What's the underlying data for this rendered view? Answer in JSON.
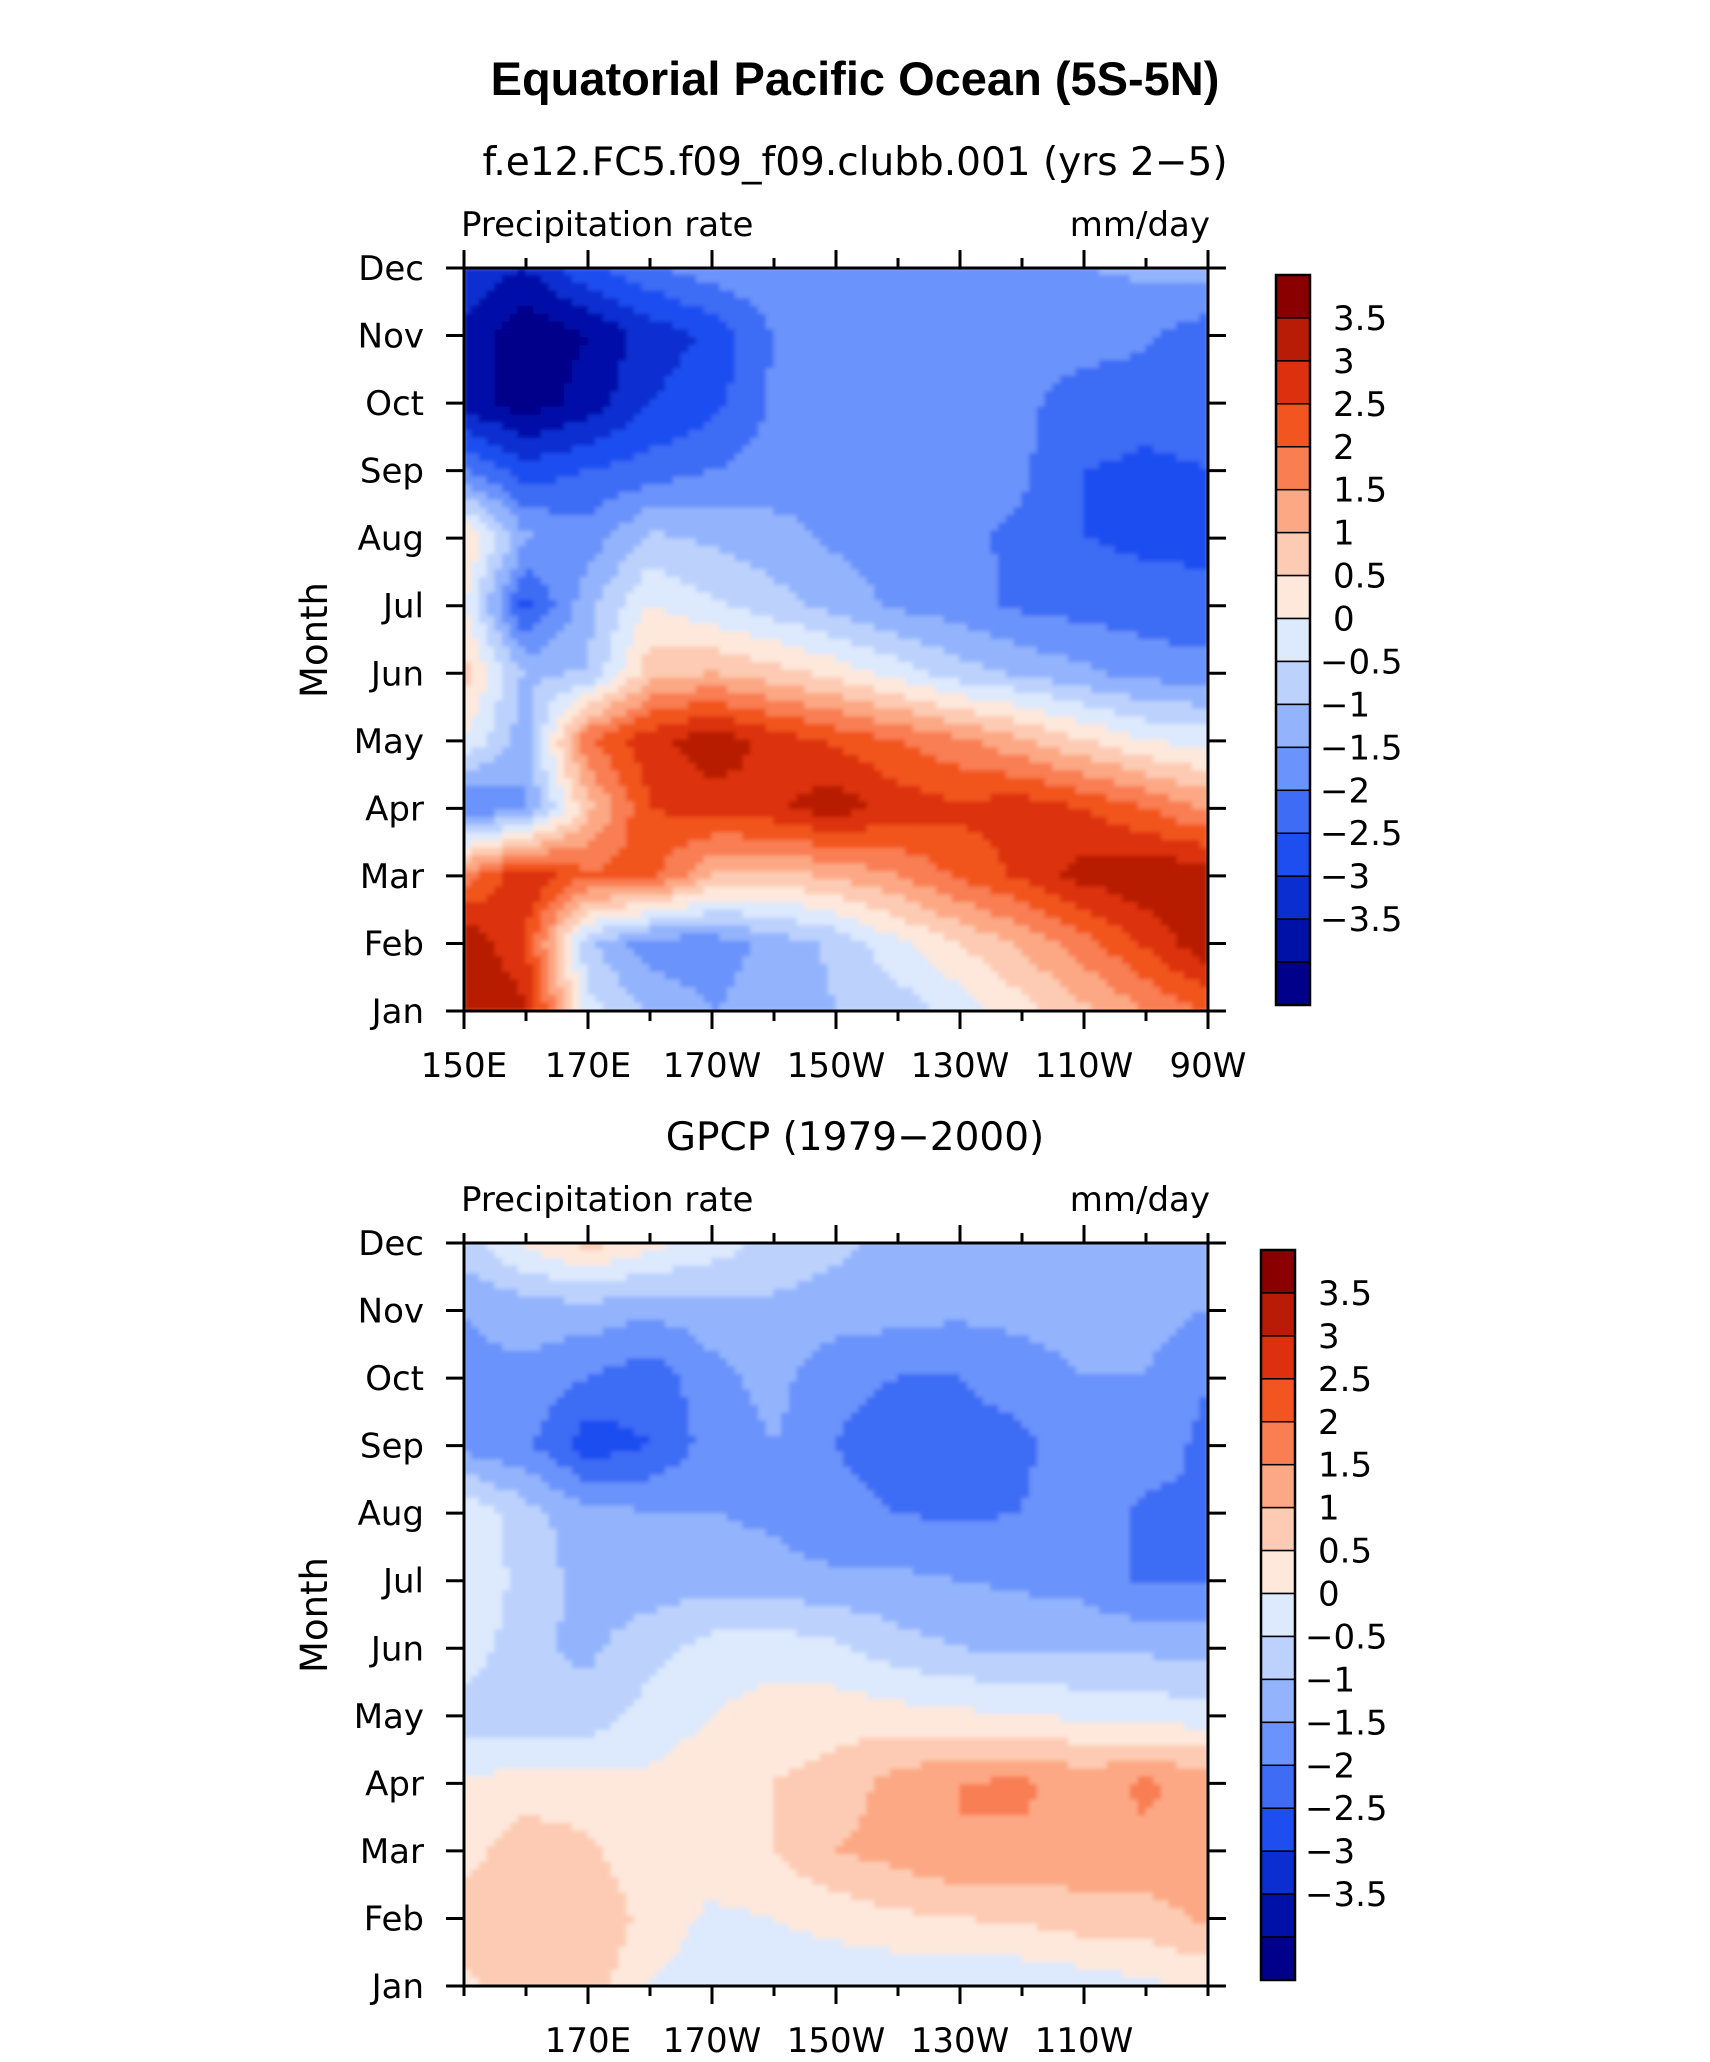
{
  "figure_title": "Equatorial Pacific Ocean (5S-5N)",
  "colors": [
    "#00008a",
    "#0011a8",
    "#0a2ed0",
    "#1f4ef0",
    "#3e6cf5",
    "#6a93fb",
    "#93b4fd",
    "#bcd2fd",
    "#dde9fd",
    "#fde8db",
    "#fdcbb3",
    "#fca884",
    "#f97e52",
    "#f2551f",
    "#dc300e",
    "#b81b06",
    "#8a0000"
  ],
  "chart_data": [
    {
      "type": "heatmap",
      "title": "f.e12.FC5.f09_f09.clubb.001 (yrs 2−5)",
      "variable_label": "Precipitation rate",
      "units_label": "mm/day",
      "ylabel": "Month",
      "x_tick_labels": [
        "150E",
        "170E",
        "170W",
        "150W",
        "130W",
        "110W",
        "90W"
      ],
      "y_tick_labels": [
        "Jan",
        "Feb",
        "Mar",
        "Apr",
        "May",
        "Jun",
        "Jul",
        "Aug",
        "Sep",
        "Oct",
        "Nov",
        "Dec"
      ],
      "longitudes": [
        150,
        160,
        170,
        180,
        190,
        200,
        210,
        220,
        230,
        240,
        250,
        260,
        270
      ],
      "colorbar_labels": [
        "3.5",
        "3",
        "2.5",
        "2",
        "1.5",
        "1",
        "0.5",
        "0",
        "−0.5",
        "−1",
        "−1.5",
        "−2",
        "−2.5",
        "−3",
        "−3.5"
      ],
      "levels": [
        -3.5,
        -3,
        -2.5,
        -2,
        -1.5,
        -1,
        -0.5,
        0,
        0.5,
        1,
        1.5,
        2,
        2.5,
        3,
        3.5
      ],
      "values": [
        [
          4.2,
          3.6,
          0.2,
          -0.6,
          -1.0,
          -0.8,
          -0.5,
          -0.3,
          0.2,
          0.8,
          1.4,
          2.0,
          2.6
        ],
        [
          4.0,
          3.0,
          -0.4,
          -1.3,
          -1.3,
          -0.8,
          -0.4,
          0.4,
          1.0,
          1.6,
          2.3,
          3.1,
          3.9
        ],
        [
          2.2,
          3.5,
          2.6,
          2.7,
          1.5,
          1.3,
          1.6,
          2.0,
          2.6,
          3.1,
          3.7,
          3.9,
          3.9
        ],
        [
          -1.6,
          -1.1,
          1.3,
          3.0,
          3.2,
          3.4,
          3.8,
          3.3,
          3.1,
          3.3,
          3.0,
          2.5,
          1.9
        ],
        [
          0.5,
          -0.8,
          2.5,
          3.3,
          3.9,
          3.3,
          2.9,
          2.5,
          2.1,
          1.6,
          1.0,
          0.5,
          0.3
        ],
        [
          1.2,
          -0.6,
          -0.5,
          1.3,
          1.5,
          1.2,
          0.8,
          0.3,
          -0.3,
          -0.6,
          -0.9,
          -1.2,
          -1.3
        ],
        [
          0.6,
          -2.2,
          -0.7,
          0.5,
          0.1,
          -0.3,
          -0.7,
          -1.1,
          -1.3,
          -1.6,
          -1.7,
          -1.8,
          -1.9
        ],
        [
          1.1,
          -0.9,
          -1.3,
          -0.4,
          -0.6,
          -0.8,
          -1.1,
          -1.3,
          -1.4,
          -1.6,
          -2.0,
          -2.1,
          -2.1
        ],
        [
          -1.5,
          -2.3,
          -2.0,
          -1.8,
          -1.5,
          -1.3,
          -1.2,
          -1.2,
          -1.3,
          -1.4,
          -2.0,
          -2.1,
          -2.0
        ],
        [
          -3.2,
          -3.8,
          -3.3,
          -2.5,
          -2.2,
          -1.4,
          -1.1,
          -1.2,
          -1.3,
          -1.4,
          -1.7,
          -1.8,
          -1.8
        ],
        [
          -3.1,
          -3.9,
          -3.5,
          -2.8,
          -2.4,
          -1.5,
          -1.2,
          -1.2,
          -1.2,
          -1.3,
          -1.3,
          -1.4,
          -1.8
        ],
        [
          -2.6,
          -3.0,
          -2.1,
          -1.6,
          -1.2,
          -1.0,
          -1.0,
          -1.1,
          -1.1,
          -1.1,
          -1.0,
          -0.9,
          -0.8
        ]
      ]
    },
    {
      "type": "heatmap",
      "title": "GPCP (1979−2000)",
      "variable_label": "Precipitation rate",
      "units_label": "mm/day",
      "ylabel": "Month",
      "x_tick_labels": [
        "170E",
        "170W",
        "150W",
        "130W",
        "110W"
      ],
      "y_tick_labels": [
        "Jan",
        "Feb",
        "Mar",
        "Apr",
        "May",
        "Jun",
        "Jul",
        "Aug",
        "Sep",
        "Oct",
        "Nov",
        "Dec"
      ],
      "longitudes": [
        150,
        160,
        170,
        180,
        190,
        200,
        210,
        220,
        230,
        240,
        250,
        260,
        270
      ],
      "colorbar_labels": [
        "3.5",
        "3",
        "2.5",
        "2",
        "1.5",
        "1",
        "0.5",
        "0",
        "−0.5",
        "−1",
        "−1.5",
        "−2",
        "−2.5",
        "−3",
        "−3.5"
      ],
      "levels": [
        -3.5,
        -3,
        -2.5,
        -2,
        -1.5,
        -1,
        -0.5,
        0,
        0.5,
        1,
        1.5,
        2,
        2.5,
        3,
        3.5
      ],
      "values": [
        [
          0.9,
          1.2,
          1.3,
          0.5,
          0.2,
          0.2,
          0.1,
          0.1,
          0.1,
          0.1,
          0.2,
          0.4,
          0.6
        ],
        [
          1.2,
          1.3,
          1.5,
          0.8,
          0.4,
          0.5,
          0.7,
          0.9,
          1.0,
          1.1,
          1.3,
          1.3,
          1.6
        ],
        [
          0.8,
          1.3,
          1.1,
          0.6,
          0.8,
          1.0,
          1.5,
          1.7,
          2.0,
          1.9,
          1.8,
          1.9,
          1.7
        ],
        [
          0.6,
          0.7,
          0.7,
          0.6,
          0.8,
          1.0,
          1.2,
          1.7,
          2.0,
          2.1,
          1.8,
          2.1,
          1.8
        ],
        [
          -0.3,
          -0.4,
          -0.3,
          0.2,
          0.5,
          0.7,
          0.8,
          0.7,
          0.6,
          0.5,
          0.4,
          0.3,
          0.2
        ],
        [
          0.4,
          -0.4,
          -0.6,
          -0.2,
          0.2,
          0.3,
          0.1,
          -0.3,
          -0.5,
          -0.6,
          -0.6,
          -0.6,
          -0.7
        ],
        [
          0.5,
          -0.2,
          -0.7,
          -0.8,
          -0.7,
          -0.8,
          -0.9,
          -0.9,
          -1.0,
          -1.1,
          -1.2,
          -1.6,
          -1.5
        ],
        [
          0.4,
          -0.3,
          -0.8,
          -1.0,
          -1.0,
          -1.1,
          -1.4,
          -1.5,
          -1.6,
          -1.5,
          -1.2,
          -1.6,
          -1.5
        ],
        [
          -1.2,
          -1.4,
          -2.3,
          -2.0,
          -1.3,
          -1.0,
          -1.5,
          -1.7,
          -1.7,
          -1.6,
          -1.2,
          -1.3,
          -1.6
        ],
        [
          -1.1,
          -1.1,
          -1.5,
          -1.8,
          -1.2,
          -0.8,
          -1.4,
          -1.5,
          -1.5,
          -1.3,
          -1.0,
          -1.0,
          -1.5
        ],
        [
          -1.0,
          -0.8,
          -0.7,
          -0.9,
          -0.7,
          -0.6,
          -0.7,
          -0.8,
          -0.9,
          -0.8,
          -0.7,
          -0.8,
          -1.0
        ],
        [
          -0.2,
          0.6,
          1.2,
          0.7,
          0.3,
          -0.2,
          -0.4,
          -0.6,
          -0.6,
          -0.6,
          -0.5,
          -0.6,
          -0.7
        ]
      ]
    }
  ]
}
